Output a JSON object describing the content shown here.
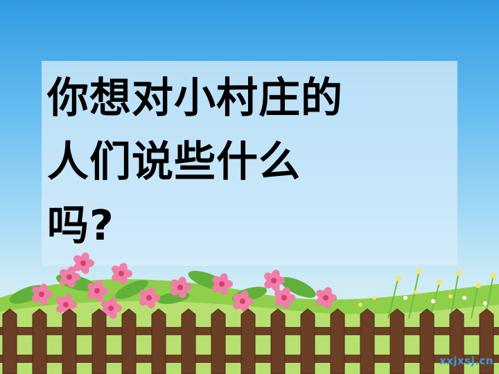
{
  "slide": {
    "question_lines": [
      "你想对小村庄的",
      "人们说些什么",
      "吗?"
    ]
  },
  "watermark": {
    "text": "xxjxsj.cn"
  },
  "colors": {
    "sky_top": "#2f9be4",
    "sky_bottom": "#cdebf6",
    "fence": "#6b3f26",
    "flower": "#ef7fa6"
  },
  "icons": [
    "flower-bush",
    "wooden-fence",
    "wildflowers"
  ]
}
